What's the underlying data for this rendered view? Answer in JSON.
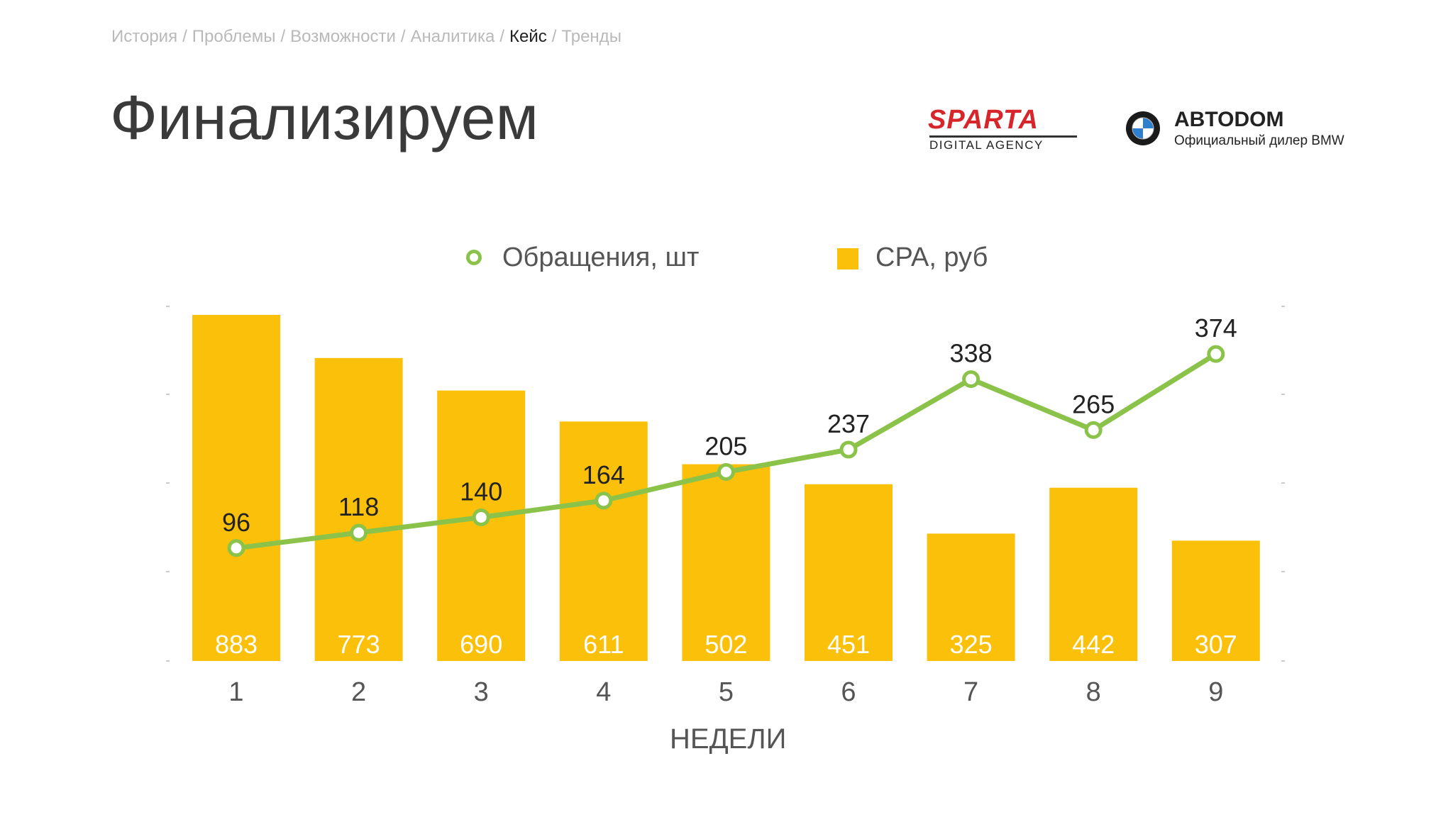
{
  "breadcrumb": {
    "items": [
      "История",
      "Проблемы",
      "Возможности",
      "Аналитика",
      "Кейс",
      "Тренды"
    ],
    "separator": "/",
    "active": "Кейс"
  },
  "page_title": "Финализируем",
  "logos": {
    "sparta": {
      "name": "SPARTA",
      "subtitle": "DIGITAL AGENCY"
    },
    "avtodom": {
      "name": "ABTODOM",
      "subtitle": "Официальный дилер BMW",
      "icon": "bmw-roundel-icon"
    }
  },
  "colors": {
    "bar": "#fbc10a",
    "line": "#8bc34a",
    "bar_label": "#ffffff",
    "value_label": "#222222",
    "tick": "#555555"
  },
  "chart_data": {
    "type": "bar",
    "categories": [
      "1",
      "2",
      "3",
      "4",
      "5",
      "6",
      "7",
      "8",
      "9"
    ],
    "xlabel": "НЕДЕЛИ",
    "legend_position": "top",
    "series": [
      {
        "name": "CPA, руб",
        "type": "bar",
        "values": [
          883,
          773,
          690,
          611,
          502,
          451,
          325,
          442,
          307
        ]
      },
      {
        "name": "Обращения, шт",
        "type": "line",
        "values": [
          96,
          118,
          140,
          164,
          205,
          237,
          338,
          265,
          374
        ]
      }
    ]
  }
}
